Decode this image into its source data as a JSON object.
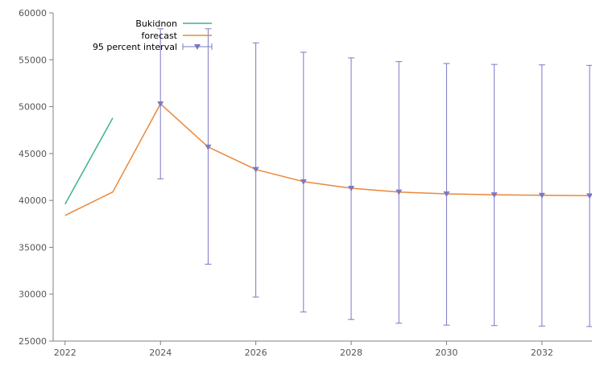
{
  "chart_data": {
    "type": "line",
    "title": "",
    "xlabel": "",
    "ylabel": "",
    "xlim": [
      2021.75,
      2033.05
    ],
    "ylim": [
      25000,
      60000
    ],
    "x_ticks": [
      "2022",
      "2024",
      "2026",
      "2028",
      "2030",
      "2032"
    ],
    "y_ticks": [
      "25000",
      "30000",
      "35000",
      "40000",
      "45000",
      "50000",
      "55000",
      "60000"
    ],
    "grid": false,
    "legend_position": "top-left",
    "legend_labels": {
      "actual": "Bukidnon",
      "forecast": "forecast",
      "interval": "95 percent interval"
    },
    "series": [
      {
        "name": "Bukidnon",
        "color": "#3cb38f",
        "x": [
          2022,
          2023
        ],
        "y": [
          39600,
          48800
        ]
      },
      {
        "name": "forecast",
        "color": "#e8883a",
        "x": [
          2022,
          2023,
          2024,
          2025,
          2026,
          2027,
          2028,
          2029,
          2030,
          2031,
          2032,
          2033
        ],
        "y": [
          38400,
          40900,
          50300,
          45700,
          43300,
          42000,
          41300,
          40900,
          40700,
          40600,
          40550,
          40500
        ]
      },
      {
        "name": "95 percent interval",
        "color": "#7b78c4",
        "x": [
          2024,
          2025,
          2026,
          2027,
          2028,
          2029,
          2030,
          2031,
          2032,
          2033
        ],
        "lower": [
          42300,
          33200,
          29700,
          28100,
          27300,
          26900,
          26700,
          26650,
          26600,
          26550
        ],
        "upper": [
          58300,
          58300,
          56800,
          55800,
          55200,
          54800,
          54600,
          54500,
          54450,
          54400
        ]
      }
    ]
  }
}
